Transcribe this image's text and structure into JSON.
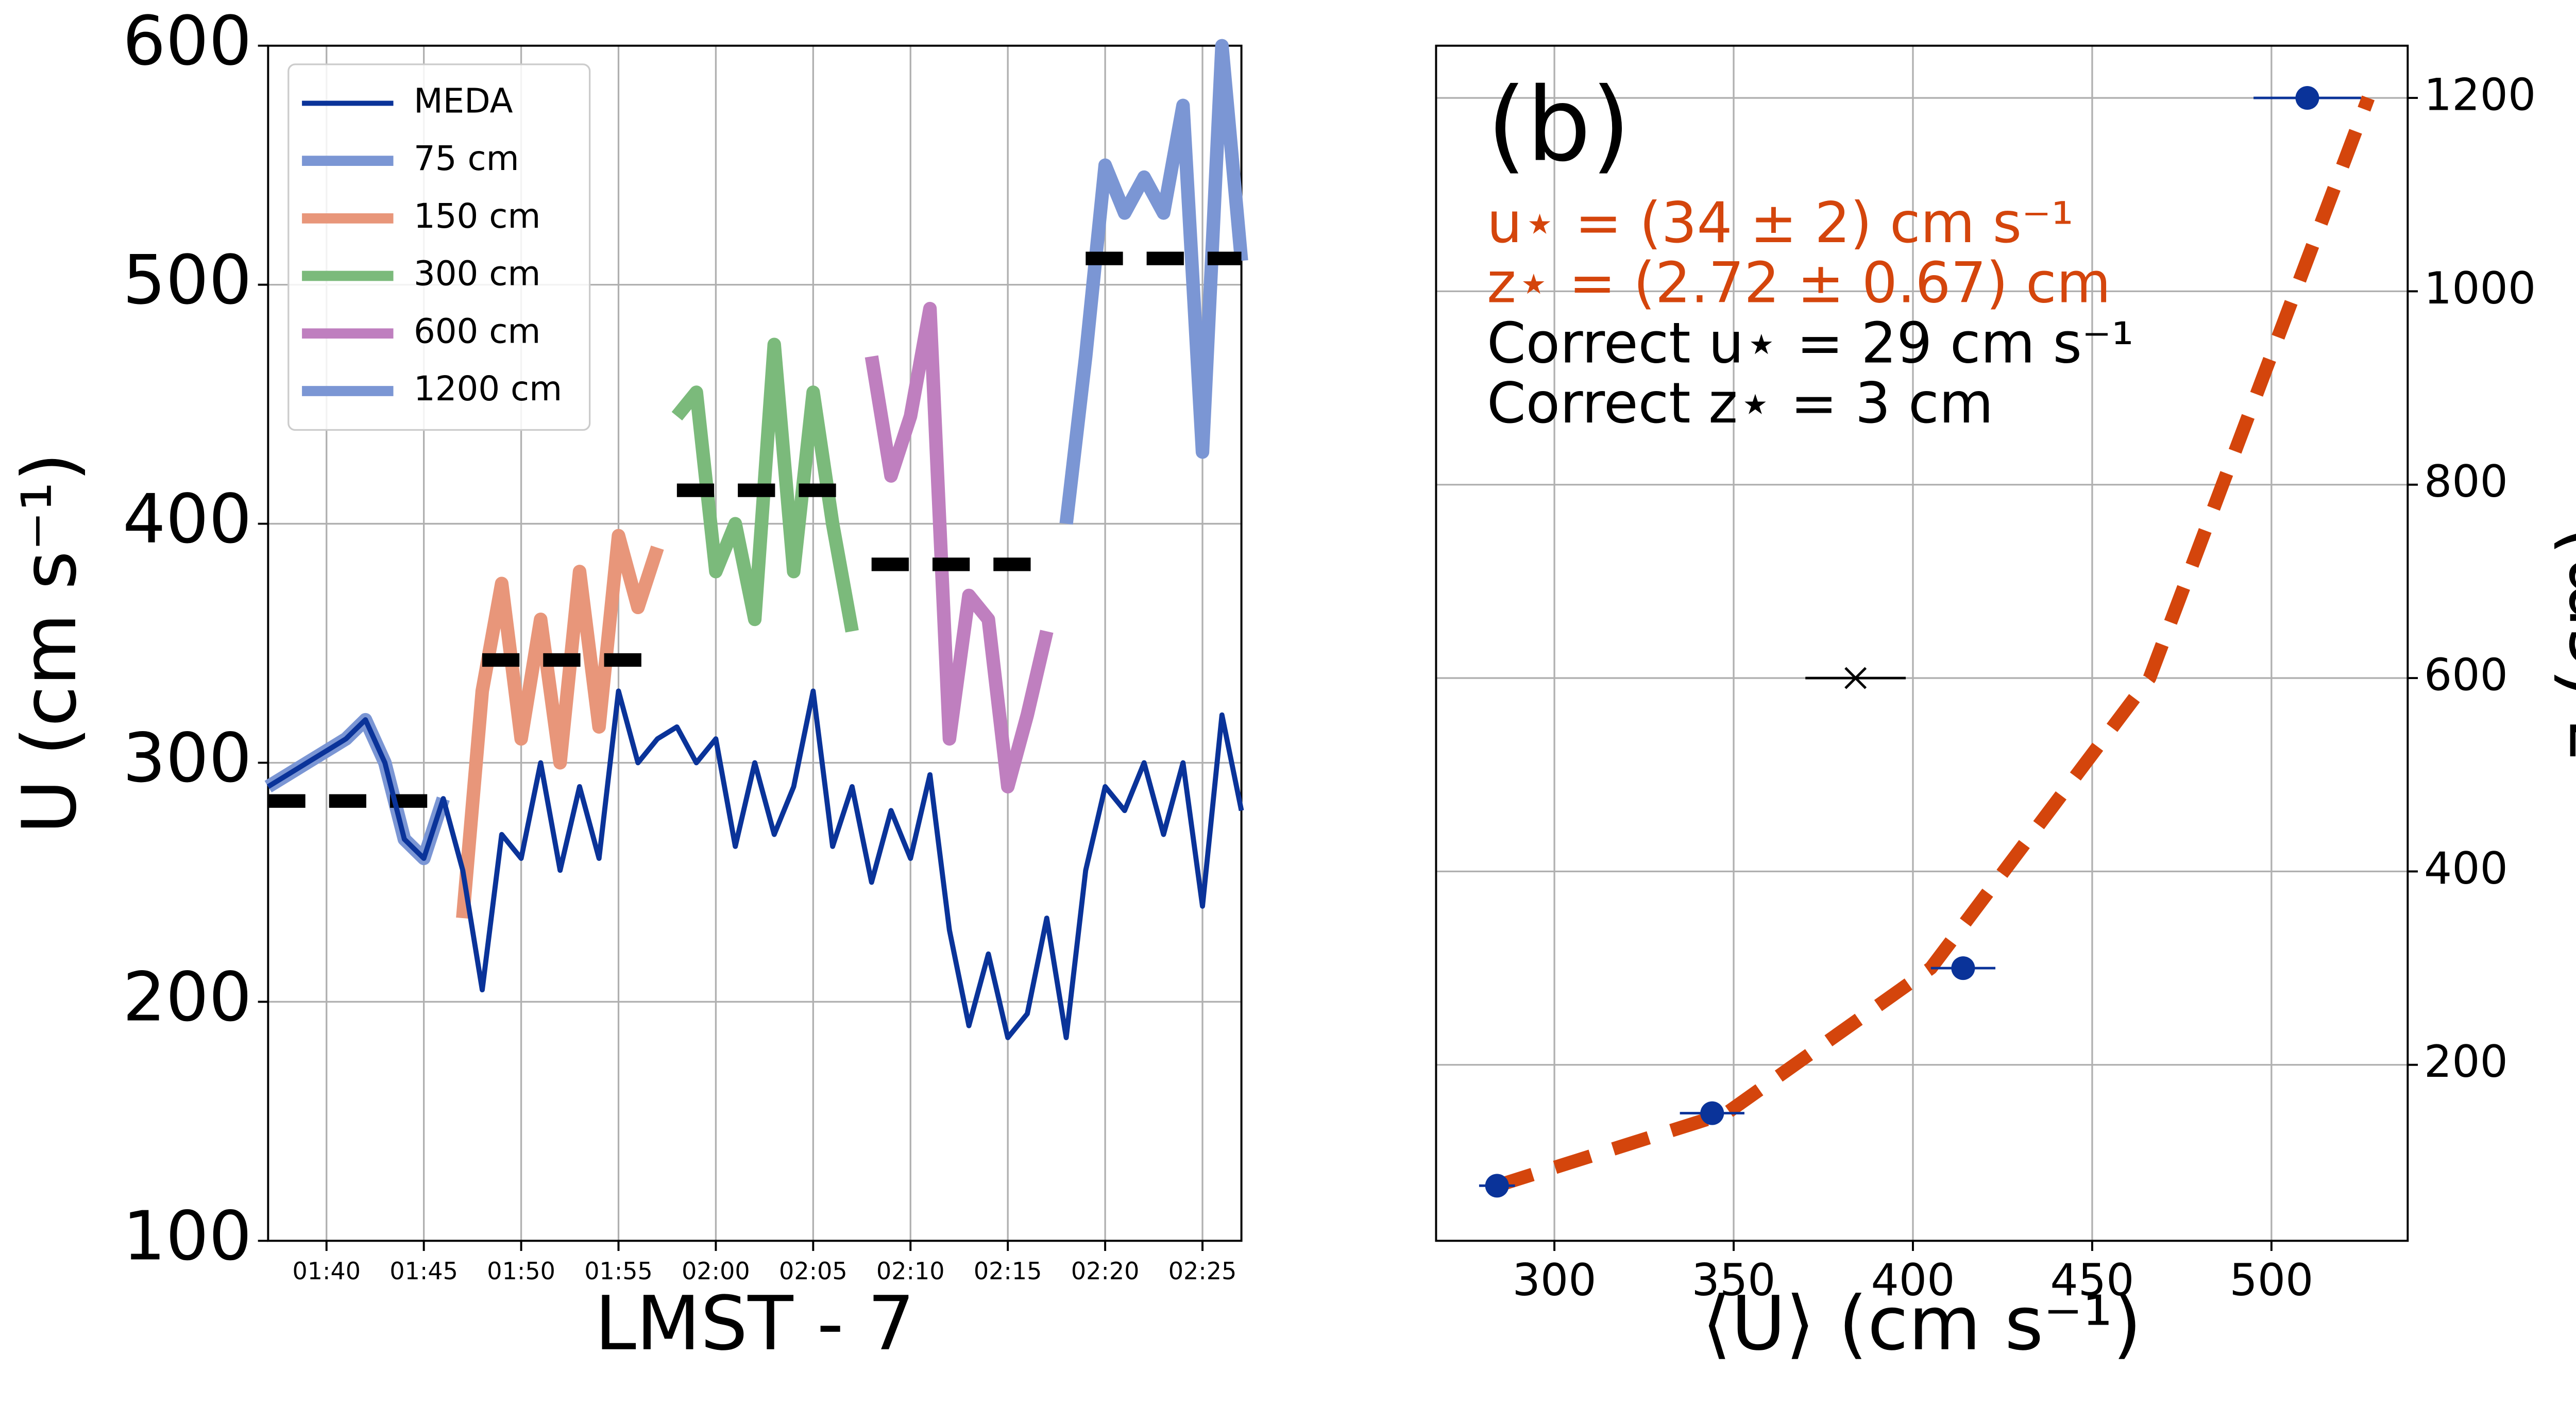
{
  "chart_data": [
    {
      "type": "line",
      "xlabel": "LMST - 7",
      "ylabel": "U (cm s⁻¹)",
      "xlim": [
        "01:37",
        "02:27"
      ],
      "xticks": [
        "01:40",
        "01:45",
        "01:50",
        "01:55",
        "02:00",
        "02:05",
        "02:10",
        "02:15",
        "02:20",
        "02:25"
      ],
      "ylim": [
        100,
        600
      ],
      "yticks": [
        100,
        200,
        300,
        400,
        500,
        600
      ],
      "grid": true,
      "legend": "upper left",
      "series": [
        {
          "name": "MEDA",
          "color": "#0a3399",
          "linewidth": 3,
          "x": [
            "01:37",
            "01:38",
            "01:39",
            "01:40",
            "01:41",
            "01:42",
            "01:43",
            "01:44",
            "01:45",
            "01:46",
            "01:47",
            "01:48",
            "01:49",
            "01:50",
            "01:51",
            "01:52",
            "01:53",
            "01:54",
            "01:55",
            "01:56",
            "01:57",
            "01:58",
            "01:59",
            "02:00",
            "02:01",
            "02:02",
            "02:03",
            "02:04",
            "02:05",
            "02:06",
            "02:07",
            "02:08",
            "02:09",
            "02:10",
            "02:11",
            "02:12",
            "02:13",
            "02:14",
            "02:15",
            "02:16",
            "02:17",
            "02:18",
            "02:19",
            "02:20",
            "02:21",
            "02:22",
            "02:23",
            "02:24",
            "02:25",
            "02:26",
            "02:27"
          ],
          "values": [
            290,
            295,
            300,
            305,
            310,
            318,
            300,
            268,
            260,
            285,
            255,
            205,
            270,
            260,
            300,
            255,
            290,
            260,
            330,
            300,
            310,
            315,
            300,
            310,
            265,
            300,
            270,
            290,
            330,
            265,
            290,
            250,
            280,
            260,
            295,
            230,
            190,
            220,
            185,
            195,
            235,
            185,
            255,
            290,
            280,
            300,
            270,
            300,
            240,
            320,
            280
          ]
        },
        {
          "name": "75 cm",
          "color": "#7b96d4",
          "linewidth": 8,
          "x": [
            "01:37",
            "01:38",
            "01:39",
            "01:40",
            "01:41",
            "01:42",
            "01:43",
            "01:44",
            "01:45",
            "01:46"
          ],
          "values": [
            290,
            295,
            300,
            305,
            310,
            318,
            300,
            268,
            260,
            285
          ]
        },
        {
          "name": "150 cm",
          "color": "#e8967a",
          "linewidth": 8,
          "x": [
            "01:47",
            "01:48",
            "01:49",
            "01:50",
            "01:51",
            "01:52",
            "01:53",
            "01:54",
            "01:55",
            "01:56",
            "01:57"
          ],
          "values": [
            235,
            330,
            375,
            310,
            360,
            300,
            380,
            315,
            395,
            365,
            390
          ]
        },
        {
          "name": "300 cm",
          "color": "#7bba7b",
          "linewidth": 8,
          "x": [
            "01:58",
            "01:59",
            "02:00",
            "02:01",
            "02:02",
            "02:03",
            "02:04",
            "02:05",
            "02:06",
            "02:07"
          ],
          "values": [
            445,
            455,
            380,
            400,
            360,
            475,
            380,
            455,
            400,
            355
          ]
        },
        {
          "name": "600 cm",
          "color": "#bf7fbf",
          "linewidth": 8,
          "x": [
            "02:08",
            "02:09",
            "02:10",
            "02:11",
            "02:12",
            "02:13",
            "02:14",
            "02:15",
            "02:16",
            "02:17"
          ],
          "values": [
            470,
            420,
            445,
            490,
            310,
            370,
            360,
            290,
            320,
            355
          ]
        },
        {
          "name": "1200 cm",
          "color": "#7b96d4",
          "linewidth": 8,
          "x": [
            "02:18",
            "02:19",
            "02:20",
            "02:21",
            "02:22",
            "02:23",
            "02:24",
            "02:25",
            "02:26",
            "02:27"
          ],
          "values": [
            400,
            470,
            550,
            530,
            545,
            530,
            575,
            430,
            600,
            510
          ]
        },
        {
          "color": "#000000",
          "linewidth": 8,
          "linestyle": "dashed",
          "x": [
            "01:37",
            "01:46"
          ],
          "values": [
            284,
            284
          ]
        },
        {
          "color": "#000000",
          "linewidth": 8,
          "linestyle": "dashed",
          "x": [
            "01:48",
            "01:57"
          ],
          "values": [
            343,
            343
          ]
        },
        {
          "color": "#000000",
          "linewidth": 8,
          "linestyle": "dashed",
          "x": [
            "01:58",
            "02:07"
          ],
          "values": [
            414,
            414
          ]
        },
        {
          "color": "#000000",
          "linewidth": 8,
          "linestyle": "dashed",
          "x": [
            "02:08",
            "02:17"
          ],
          "values": [
            383,
            383
          ]
        },
        {
          "color": "#000000",
          "linewidth": 8,
          "linestyle": "dashed",
          "x": [
            "02:19",
            "02:27"
          ],
          "values": [
            511,
            511
          ]
        }
      ]
    },
    {
      "type": "scatter",
      "xlabel": "⟨U⟩ (cm s⁻¹)",
      "ylabel": "z (cm)",
      "xlim": [
        267,
        538
      ],
      "xticks": [
        300,
        350,
        400,
        450,
        500
      ],
      "ylim": [
        18,
        1254
      ],
      "yticks": [
        200,
        400,
        600,
        800,
        1000,
        1200
      ],
      "yaxis_side": "right",
      "grid": true,
      "annotations": [
        {
          "text": "(b)",
          "color": "#000000"
        },
        {
          "text": "u⋆ = (34 ± 2) cm s⁻¹",
          "color": "#d4450c"
        },
        {
          "text": "z⋆ = (2.72 ± 0.67) cm",
          "color": "#d4450c"
        },
        {
          "text": "Correct u⋆ = 29 cm s⁻¹",
          "color": "#000000"
        },
        {
          "text": "Correct z⋆ = 3 cm",
          "color": "#000000"
        }
      ],
      "series": [
        {
          "color": "#d4450c",
          "linestyle": "dashed",
          "marker": "none",
          "x": [
            284,
            348,
            405,
            466,
            527
          ],
          "values": [
            75,
            150,
            300,
            600,
            1200
          ]
        },
        {
          "color": "#0a3399",
          "marker": "o",
          "x": [
            284,
            344,
            414,
            510
          ],
          "values": [
            75,
            150,
            300,
            1200
          ],
          "xerr": [
            5,
            9,
            9,
            15
          ]
        },
        {
          "color": "#000000",
          "marker": "x",
          "x": [
            384
          ],
          "values": [
            600
          ],
          "xerr": [
            14
          ]
        }
      ]
    }
  ]
}
